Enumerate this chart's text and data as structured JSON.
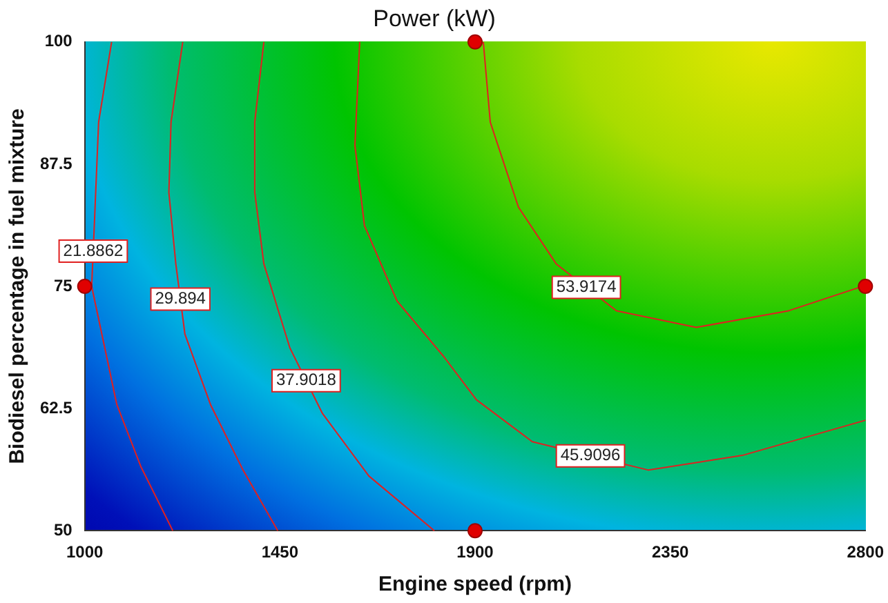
{
  "chart_data": {
    "type": "line",
    "title": "Power (kW)",
    "xlabel": "Engine speed (rpm)",
    "ylabel": "Biodiesel percentage in fuel mixture",
    "xlim": [
      1000,
      2800
    ],
    "ylim": [
      50,
      100
    ],
    "xticks": [
      1000,
      1450,
      1900,
      2350,
      2800
    ],
    "yticks": [
      50,
      62.5,
      75,
      87.5,
      100
    ],
    "grid": false,
    "legend": false,
    "line_style": "solid",
    "series": [
      {
        "name": "21.8862",
        "color": "#e02020",
        "x": [
          1062,
          1032,
          1023,
          1016,
          1074,
          1129,
          1203
        ],
        "values": [
          100,
          91.8,
          82.2,
          75,
          62.9,
          56.6,
          50
        ]
      },
      {
        "name": "29.894",
        "color": "#e02020",
        "x": [
          1226,
          1199,
          1194,
          1210,
          1231,
          1290,
          1365,
          1445
        ],
        "values": [
          100,
          91.8,
          84.6,
          77.3,
          70.1,
          62.9,
          56.2,
          50
        ]
      },
      {
        "name": "37.9018",
        "color": "#e02020",
        "x": [
          1413,
          1392,
          1392,
          1413,
          1473,
          1548,
          1655,
          1806
        ],
        "values": [
          100,
          91.8,
          84.6,
          77.3,
          68.7,
          62,
          55.6,
          50
        ]
      },
      {
        "name": "45.9096",
        "color": "#e02020",
        "x": [
          1634,
          1623,
          1645,
          1720,
          1828,
          1903,
          2032,
          2300,
          2516,
          2800
        ],
        "values": [
          100,
          89.4,
          81.2,
          73.5,
          67.8,
          63.4,
          59.1,
          56.2,
          57.7,
          61.3
        ]
      },
      {
        "name": "53.9174",
        "color": "#e02020",
        "x": [
          1919,
          1935,
          2000,
          2087,
          2226,
          2410,
          2623,
          2800
        ],
        "values": [
          100,
          91.8,
          83.1,
          77.3,
          72.5,
          70.8,
          72.5,
          75.1
        ]
      },
      {
        "type": "scatter",
        "marker": "circle",
        "color": "#e00000",
        "x": [
          1000,
          1900,
          1900,
          2800
        ],
        "values": [
          75,
          100,
          50,
          75
        ]
      }
    ]
  }
}
